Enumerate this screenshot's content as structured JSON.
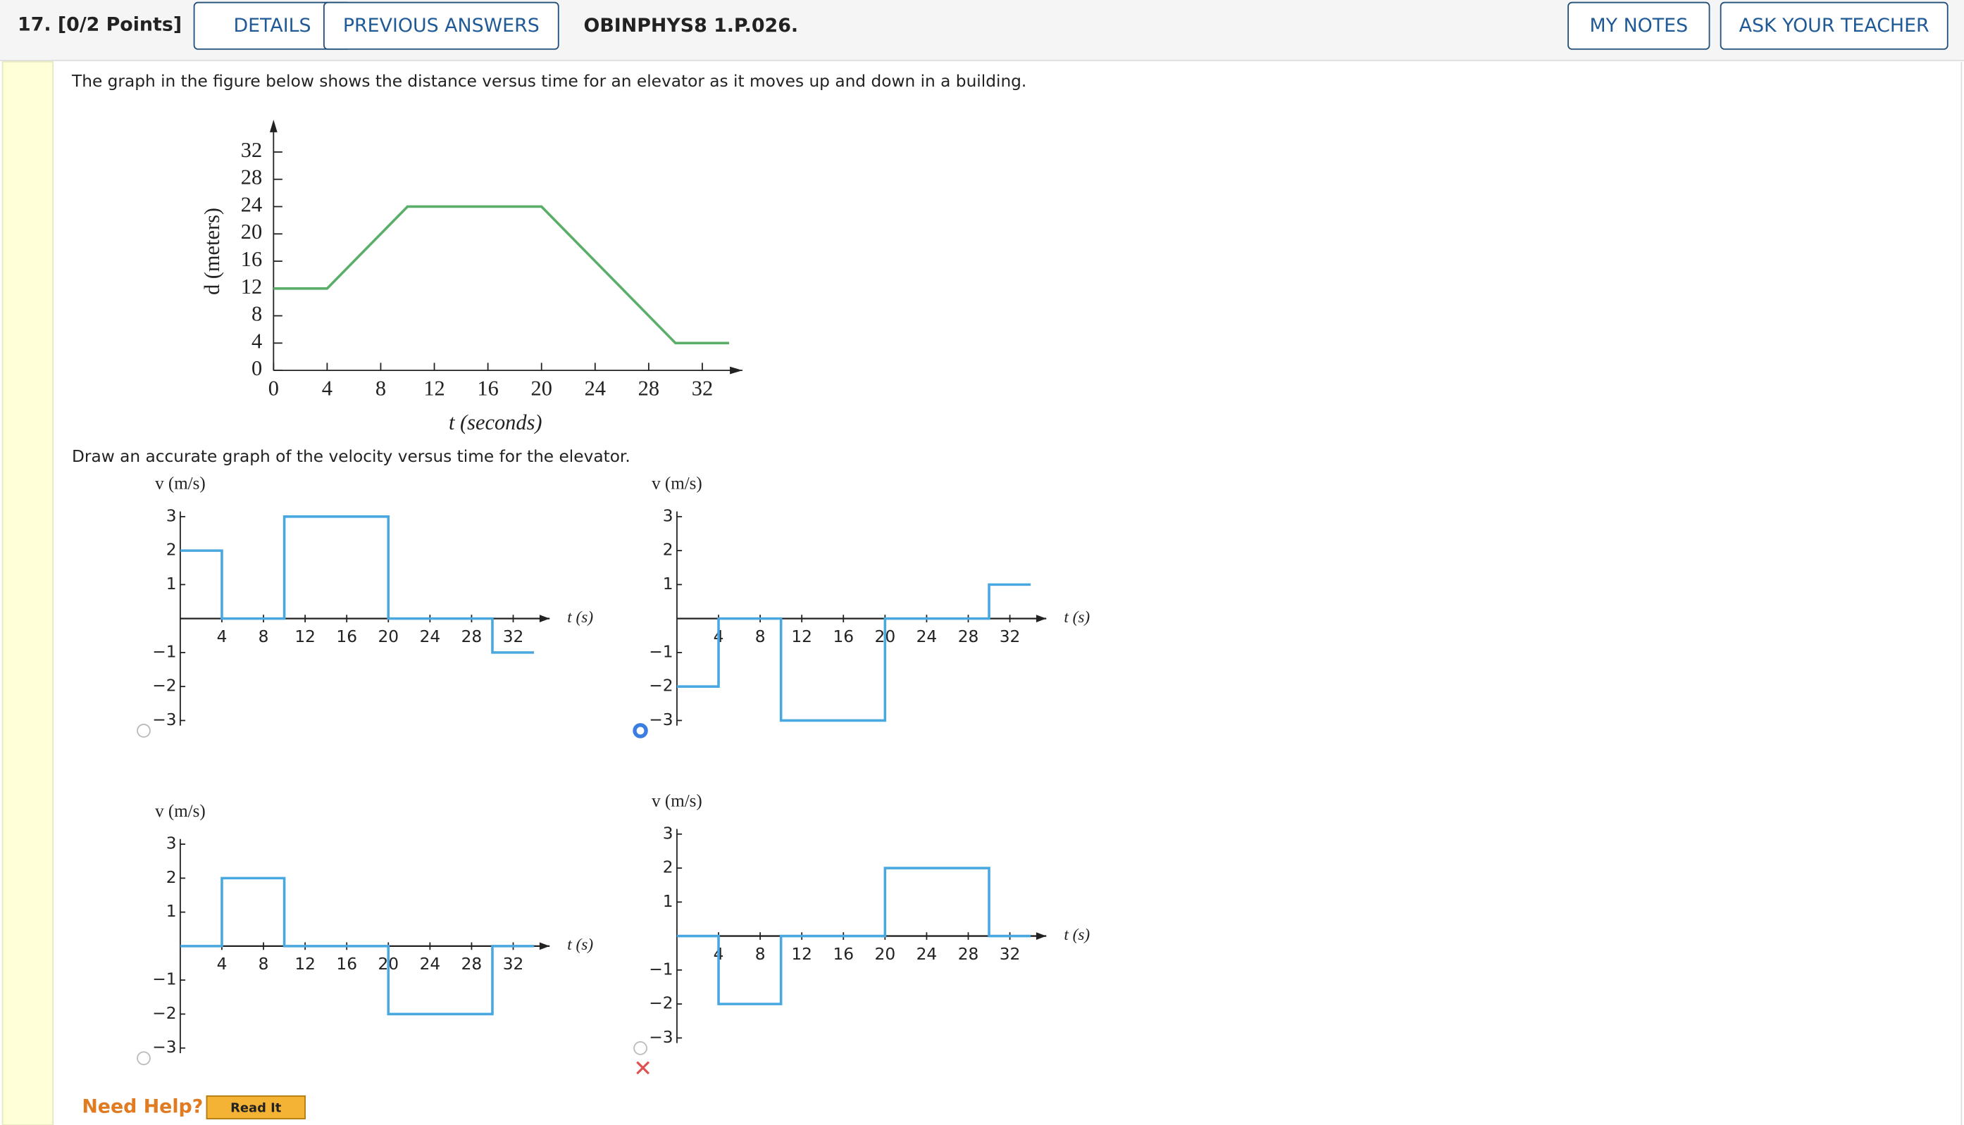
{
  "header": {
    "points": "17. [0/2 Points]",
    "buttons": [
      "DETAILS",
      "PREVIOUS ANSWERS"
    ],
    "code": "OBINPHYS8 1.P.026.",
    "right_buttons": [
      "MY NOTES",
      "ASK YOUR TEACHER"
    ]
  },
  "question": "The graph in the figure below shows the distance versus time for an elevator as it moves up and down in a building.",
  "prompt": "Draw an accurate graph of the velocity versus time for the elevator.",
  "selected_option": 1,
  "help": {
    "label": "Need Help?",
    "button": "Read It"
  },
  "chart_data": [
    {
      "type": "line",
      "xlabel": "t (seconds)",
      "ylabel": "d (meters)",
      "color": "#5aae6a",
      "x": [
        0,
        4,
        10,
        20,
        30,
        34
      ],
      "values": [
        12,
        12,
        24,
        24,
        4,
        4
      ],
      "xlim": [
        0,
        35
      ],
      "ylim": [
        0,
        36
      ],
      "xticks": [
        0,
        4,
        8,
        12,
        16,
        20,
        24,
        28,
        32
      ],
      "yticks": [
        0,
        4,
        8,
        12,
        16,
        20,
        24,
        28,
        32
      ]
    },
    {
      "type": "step",
      "xlabel": "t (s)",
      "ylabel": "v (m/s)",
      "color": "#4aa8e0",
      "x": [
        0,
        4,
        4,
        10,
        10,
        20,
        20,
        30,
        30,
        34
      ],
      "values": [
        2,
        2,
        0,
        0,
        3,
        3,
        0,
        0,
        -1,
        -1
      ],
      "xlim": [
        0,
        35.5
      ],
      "ylim": [
        -3.3,
        3.3
      ],
      "xticks": [
        4,
        8,
        12,
        16,
        20,
        24,
        28,
        32
      ],
      "yticks": [
        {
          "value": -3,
          "label": "−3"
        },
        {
          "value": -2,
          "label": "−2"
        },
        {
          "value": -1,
          "label": "−1"
        },
        1,
        2,
        3
      ]
    },
    {
      "type": "step",
      "xlabel": "t (s)",
      "ylabel": "v (m/s)",
      "color": "#4aa8e0",
      "x": [
        0,
        4,
        4,
        10,
        10,
        20,
        20,
        30,
        30,
        34
      ],
      "values": [
        -2,
        -2,
        0,
        0,
        -3,
        -3,
        0,
        0,
        1,
        1
      ],
      "xlim": [
        0,
        35.5
      ],
      "ylim": [
        -3.3,
        3.3
      ],
      "xticks": [
        4,
        8,
        12,
        16,
        20,
        24,
        28,
        32
      ],
      "yticks": [
        {
          "value": -3,
          "label": "−3"
        },
        {
          "value": -2,
          "label": "−2"
        },
        {
          "value": -1,
          "label": "−1"
        },
        1,
        2,
        3
      ]
    },
    {
      "type": "step",
      "xlabel": "t (s)",
      "ylabel": "v (m/s)",
      "color": "#4aa8e0",
      "x": [
        0,
        4,
        4,
        10,
        10,
        20,
        20,
        30,
        30,
        34
      ],
      "values": [
        0,
        0,
        2,
        2,
        0,
        0,
        -2,
        -2,
        0,
        0
      ],
      "xlim": [
        0,
        35.5
      ],
      "ylim": [
        -3.3,
        3.3
      ],
      "xticks": [
        4,
        8,
        12,
        16,
        20,
        24,
        28,
        32
      ],
      "yticks": [
        {
          "value": -3,
          "label": "−3"
        },
        {
          "value": -2,
          "label": "−2"
        },
        {
          "value": -1,
          "label": "−1"
        },
        1,
        2,
        3
      ]
    },
    {
      "type": "step",
      "xlabel": "t (s)",
      "ylabel": "v (m/s)",
      "color": "#4aa8e0",
      "x": [
        0,
        4,
        4,
        10,
        10,
        20,
        20,
        30,
        30,
        34
      ],
      "values": [
        0,
        0,
        -2,
        -2,
        0,
        0,
        2,
        2,
        0,
        0
      ],
      "xlim": [
        0,
        35.5
      ],
      "ylim": [
        -3.3,
        3.3
      ],
      "xticks": [
        4,
        8,
        12,
        16,
        20,
        24,
        28,
        32
      ],
      "yticks": [
        {
          "value": -3,
          "label": "−3"
        },
        {
          "value": -2,
          "label": "−2"
        },
        {
          "value": -1,
          "label": "−1"
        },
        1,
        2,
        3
      ]
    }
  ]
}
